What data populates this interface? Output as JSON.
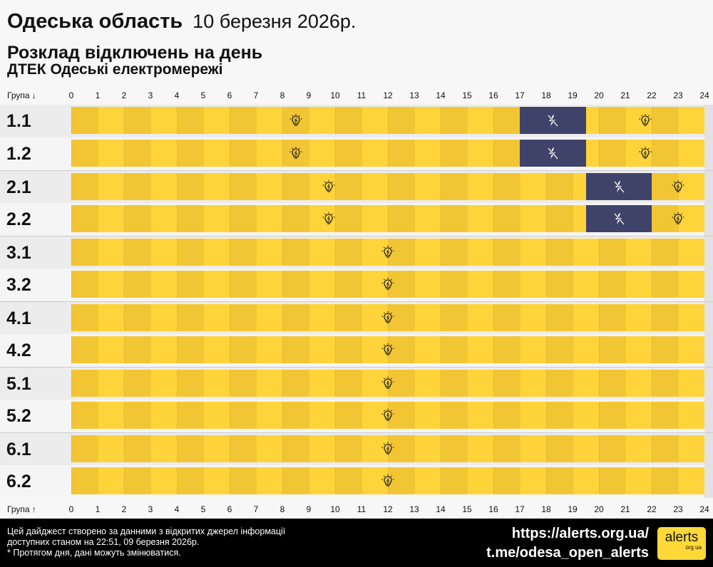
{
  "header": {
    "region": "Одеська область",
    "date": "10 березня 2026р.",
    "subtitle": "Розклад відключень на день",
    "provider": "ДТЕК Одеські електромережі"
  },
  "axis": {
    "top_label": "Група ↓",
    "bottom_label": "Група ↑",
    "hours": [
      "0",
      "1",
      "2",
      "3",
      "4",
      "5",
      "6",
      "7",
      "8",
      "9",
      "10",
      "11",
      "12",
      "13",
      "14",
      "15",
      "16",
      "17",
      "18",
      "19",
      "20",
      "21",
      "22",
      "23",
      "24"
    ]
  },
  "colors": {
    "on_even": "#f2c535",
    "on_odd": "#ffd43a",
    "off": "#3f4369"
  },
  "groups": [
    {
      "name": "1.1",
      "outages": [
        [
          17,
          19.5
        ]
      ]
    },
    {
      "name": "1.2",
      "outages": [
        [
          17,
          19.5
        ]
      ]
    },
    {
      "name": "2.1",
      "outages": [
        [
          19.5,
          22
        ]
      ]
    },
    {
      "name": "2.2",
      "outages": [
        [
          19.5,
          22
        ]
      ]
    },
    {
      "name": "3.1",
      "outages": []
    },
    {
      "name": "3.2",
      "outages": []
    },
    {
      "name": "4.1",
      "outages": []
    },
    {
      "name": "4.2",
      "outages": []
    },
    {
      "name": "5.1",
      "outages": []
    },
    {
      "name": "5.2",
      "outages": []
    },
    {
      "name": "6.1",
      "outages": []
    },
    {
      "name": "6.2",
      "outages": []
    }
  ],
  "icons": {
    "power_on": "lightbulb-icon",
    "power_off": "no-power-icon"
  },
  "footer": {
    "note1": "Цей дайджест створено за данними з відкритих джерел інформації",
    "note2": "доступних станом на 22:51, 09 березня 2026р.",
    "note3": "* Протягом дня, дані можуть змінюватися.",
    "site": "https://alerts.org.ua/",
    "telegram": "t.me/odesa_open_alerts",
    "logo": "alerts",
    "logo_sub": "org.ua"
  }
}
